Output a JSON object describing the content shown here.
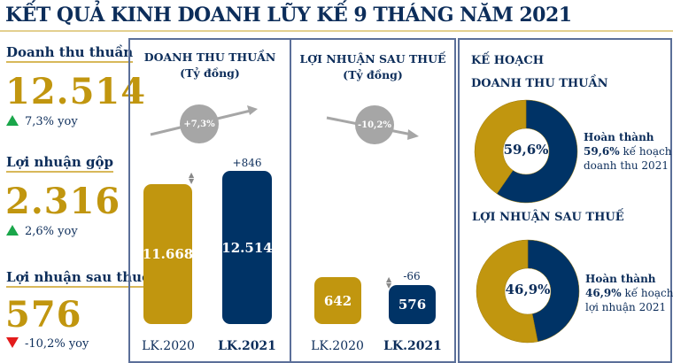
{
  "title": "KẾT QUẢ KINH DOANH LŨY KẾ 9 THÁNG NĂM 2021",
  "kpis": [
    {
      "label": "Doanh thu thuần",
      "value": "12.514",
      "yoy": "7,3% yoy",
      "direction": "up"
    },
    {
      "label": "Lợi nhuận gộp",
      "value": "2.316",
      "yoy": "2,6% yoy",
      "direction": "up"
    },
    {
      "label": "Lợi nhuận sau thuế",
      "value": "576",
      "yoy": "-10,2% yoy",
      "direction": "down"
    }
  ],
  "colors": {
    "gold": "#c1960f",
    "navy": "#003366",
    "up": "#1aa64a",
    "down": "#e31b1b"
  },
  "chart_data": [
    {
      "type": "bar",
      "title": "DOANH THU THUẦN",
      "unit": "(Tỷ đồng)",
      "categories": [
        "LK.2020",
        "LK.2021"
      ],
      "values": [
        11668,
        12514
      ],
      "value_labels": [
        "11.668",
        "12.514"
      ],
      "change_label": "+846",
      "growth_label": "+7,3%"
    },
    {
      "type": "bar",
      "title": "LỢI NHUẬN SAU THUẾ",
      "unit": "(Tỷ đồng)",
      "categories": [
        "LK.2020",
        "LK.2021"
      ],
      "values": [
        642,
        576
      ],
      "value_labels": [
        "642",
        "576"
      ],
      "change_label": "-66",
      "growth_label": "-10,2%"
    },
    {
      "type": "pie",
      "heading1": "KẾ HOẠCH",
      "title": "DOANH THU THUẦN",
      "completed_pct": 59.6,
      "center_label": "59,6%",
      "note": [
        "Hoàn thành",
        "59,6%",
        " kế hoạch",
        "doanh thu 2021"
      ]
    },
    {
      "type": "pie",
      "title": "LỢI NHUẬN SAU THUẾ",
      "completed_pct": 46.9,
      "center_label": "46,9%",
      "note": [
        "Hoàn thành",
        "46,9%",
        " kế hoạch",
        "lợi nhuận 2021"
      ]
    }
  ]
}
